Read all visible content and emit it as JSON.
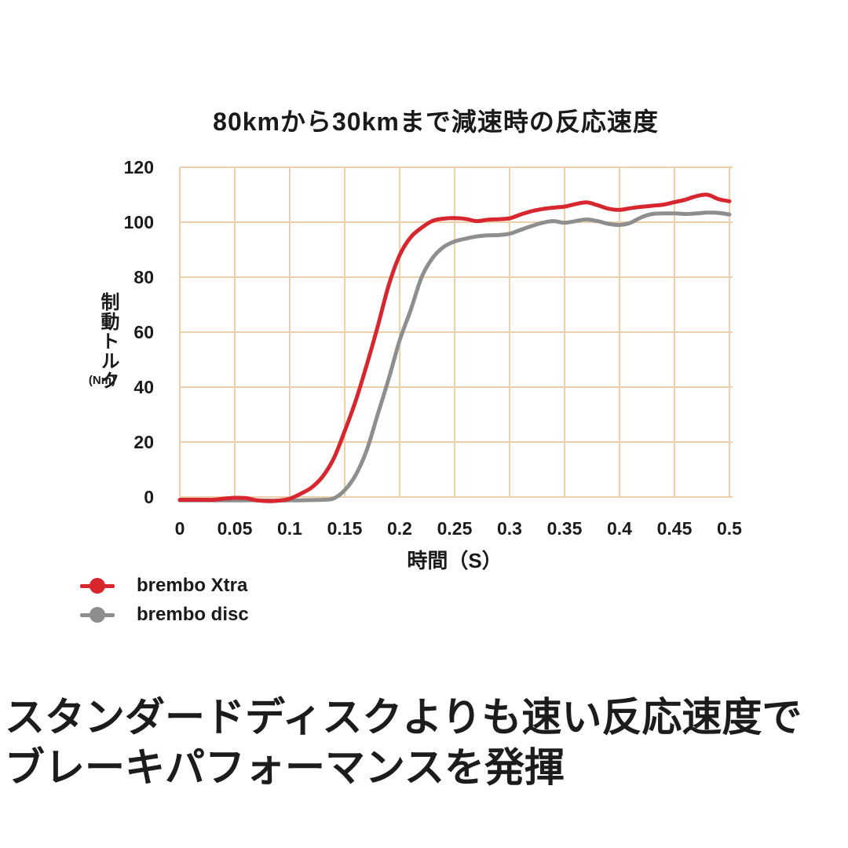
{
  "title": "80kmから30kmまで減速時の反応速度",
  "caption": {
    "line1": "スタンダードディスクよりも速い反応速度で",
    "line2": "ブレーキパフォーマンスを発揮"
  },
  "colors": {
    "background": "#ffffff",
    "grid": "#ebd0ab",
    "text": "#1a1a1a",
    "xtra_red": "#d8262f",
    "disc_gray": "#8e8e8e"
  },
  "chart_data": {
    "type": "line",
    "title": "80kmから30kmまで減速時の反応速度",
    "xlabel": "時間（S）",
    "ylabel": "制動トルク",
    "ylabel_unit": "(Nm)",
    "xlim": [
      0,
      0.5
    ],
    "ylim": [
      0,
      120
    ],
    "grid": true,
    "legend_position": "bottom-left",
    "x_ticks": {
      "values": [
        0,
        0.05,
        0.1,
        0.15,
        0.2,
        0.25,
        0.3,
        0.35,
        0.4,
        0.45,
        0.5
      ],
      "labels": [
        "0",
        "0.05",
        "0.1",
        "0.15",
        "0.2",
        "0.25",
        "0.3",
        "0.35",
        "0.4",
        "0.45",
        "0.5"
      ]
    },
    "y_ticks": {
      "values": [
        0,
        20,
        40,
        60,
        80,
        100,
        120
      ],
      "labels": [
        "0",
        "20",
        "40",
        "60",
        "80",
        "100",
        "120"
      ]
    },
    "x": [
      0.0,
      0.01,
      0.02,
      0.03,
      0.04,
      0.05,
      0.06,
      0.07,
      0.08,
      0.09,
      0.1,
      0.11,
      0.12,
      0.13,
      0.14,
      0.15,
      0.16,
      0.17,
      0.18,
      0.19,
      0.2,
      0.21,
      0.22,
      0.23,
      0.24,
      0.25,
      0.26,
      0.27,
      0.28,
      0.29,
      0.3,
      0.31,
      0.32,
      0.33,
      0.34,
      0.35,
      0.36,
      0.37,
      0.38,
      0.39,
      0.4,
      0.41,
      0.42,
      0.43,
      0.44,
      0.45,
      0.46,
      0.47,
      0.48,
      0.49,
      0.5
    ],
    "series": [
      {
        "name": "brembo Xtra",
        "color": "#d8262f",
        "values": [
          -1,
          -1,
          -1,
          -1,
          -0.6,
          -0.3,
          -0.4,
          -1.2,
          -1.5,
          -1.3,
          -0.6,
          1.2,
          3.5,
          7.5,
          14,
          24,
          35,
          48,
          62,
          77,
          88,
          94.5,
          98,
          100.5,
          101.3,
          101.5,
          101.2,
          100.4,
          100.9,
          101.1,
          101.4,
          102.8,
          104,
          104.8,
          105.3,
          105.7,
          106.6,
          107.2,
          106.2,
          104.9,
          104.5,
          105.1,
          105.6,
          106,
          106.4,
          107.3,
          108.2,
          109.5,
          110,
          108.4,
          107.6
        ]
      },
      {
        "name": "brembo disc",
        "color": "#8e8e8e",
        "values": [
          -1.2,
          -1.2,
          -1.2,
          -1.2,
          -1.2,
          -1.2,
          -1.2,
          -1.2,
          -1.3,
          -1.3,
          -1.2,
          -1.2,
          -1.1,
          -1,
          -0.5,
          2.5,
          8,
          17,
          30,
          43,
          57,
          68,
          80,
          87,
          91,
          93,
          94,
          94.8,
          95.2,
          95.3,
          95.8,
          97.2,
          98.6,
          99.8,
          100.4,
          99.8,
          100.4,
          101,
          100.4,
          99.4,
          99,
          99.8,
          101.8,
          103,
          103.2,
          103.2,
          103,
          103.2,
          103.5,
          103.4,
          102.8
        ]
      }
    ]
  }
}
